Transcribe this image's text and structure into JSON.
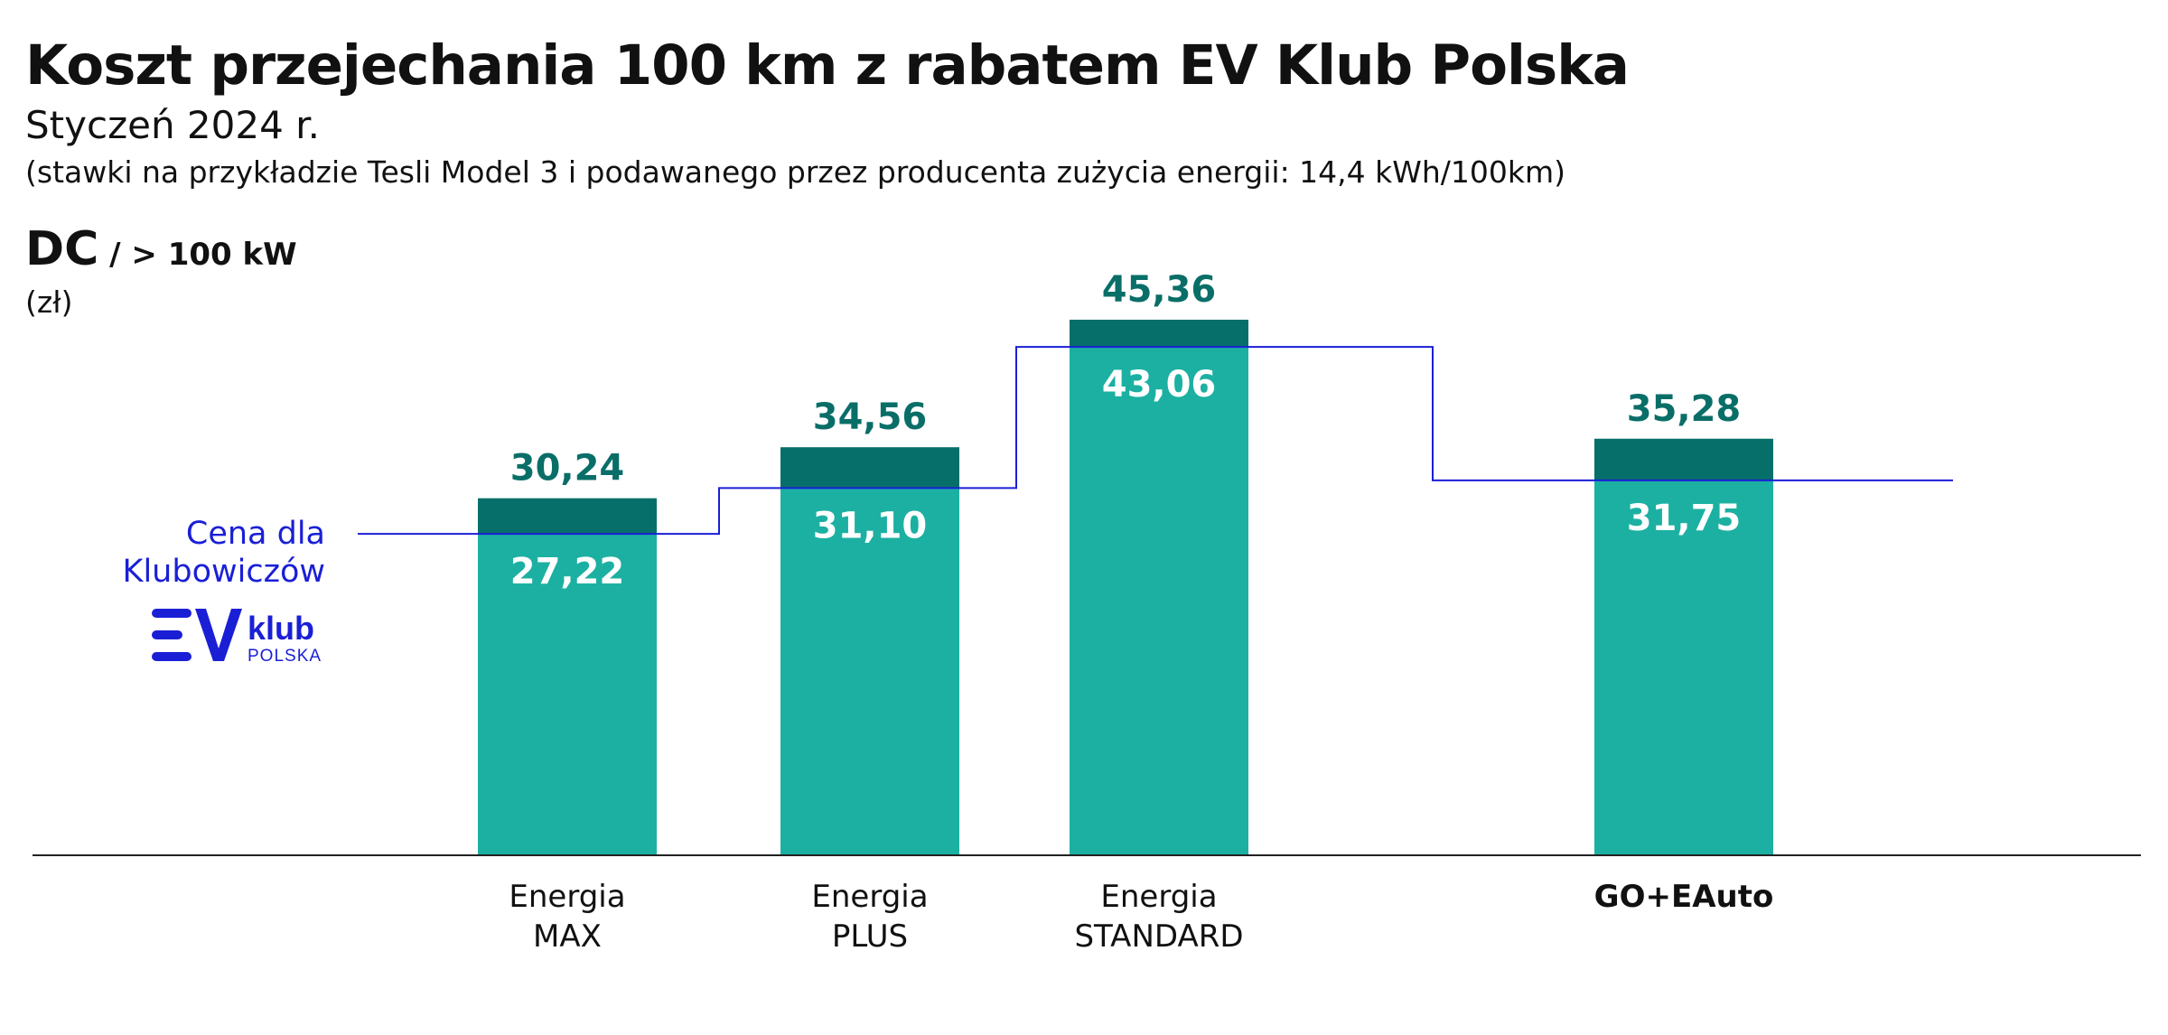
{
  "header": {
    "title": "Koszt przejechania 100 km z rabatem EV Klub Polska",
    "subtitle": "Styczeń 2024 r.",
    "note": "(stawki na przykładzie Tesli Model 3 i podawanego przez producenta zużycia energii: 14,4 kWh/100km)",
    "dc_label": "DC",
    "dc_power": " / > 100 kW",
    "unit": "(zł)"
  },
  "legend": {
    "member_price_line1": "Cena dla",
    "member_price_line2": "Klubowiczów",
    "logo_ev": "EV",
    "logo_klub": "klub",
    "logo_polska": "POLSKA"
  },
  "colors": {
    "bar_light": "#1cb0a2",
    "bar_dark": "#076f6a",
    "value_dark": "#0a6e68",
    "member_line": "#1a1fd6",
    "axis": "#222222"
  },
  "chart_data": {
    "type": "bar",
    "categories": [
      [
        "Energia",
        "MAX"
      ],
      [
        "Energia",
        "PLUS"
      ],
      [
        "Energia",
        "STANDARD"
      ],
      [
        "GO+EAuto"
      ]
    ],
    "bold_categories": [
      false,
      false,
      false,
      true
    ],
    "series": [
      {
        "values": [
          30.24,
          34.56,
          45.36,
          35.28
        ]
      },
      {
        "name": "Cena dla Klubowiczów",
        "values": [
          27.22,
          31.1,
          43.06,
          31.75
        ]
      }
    ],
    "value_labels_regular": [
      "30,24",
      "34,56",
      "45,36",
      "35,28"
    ],
    "value_labels_member": [
      "27,22",
      "31,10",
      "43,06",
      "31,75"
    ],
    "ylim": [
      0,
      46
    ]
  }
}
